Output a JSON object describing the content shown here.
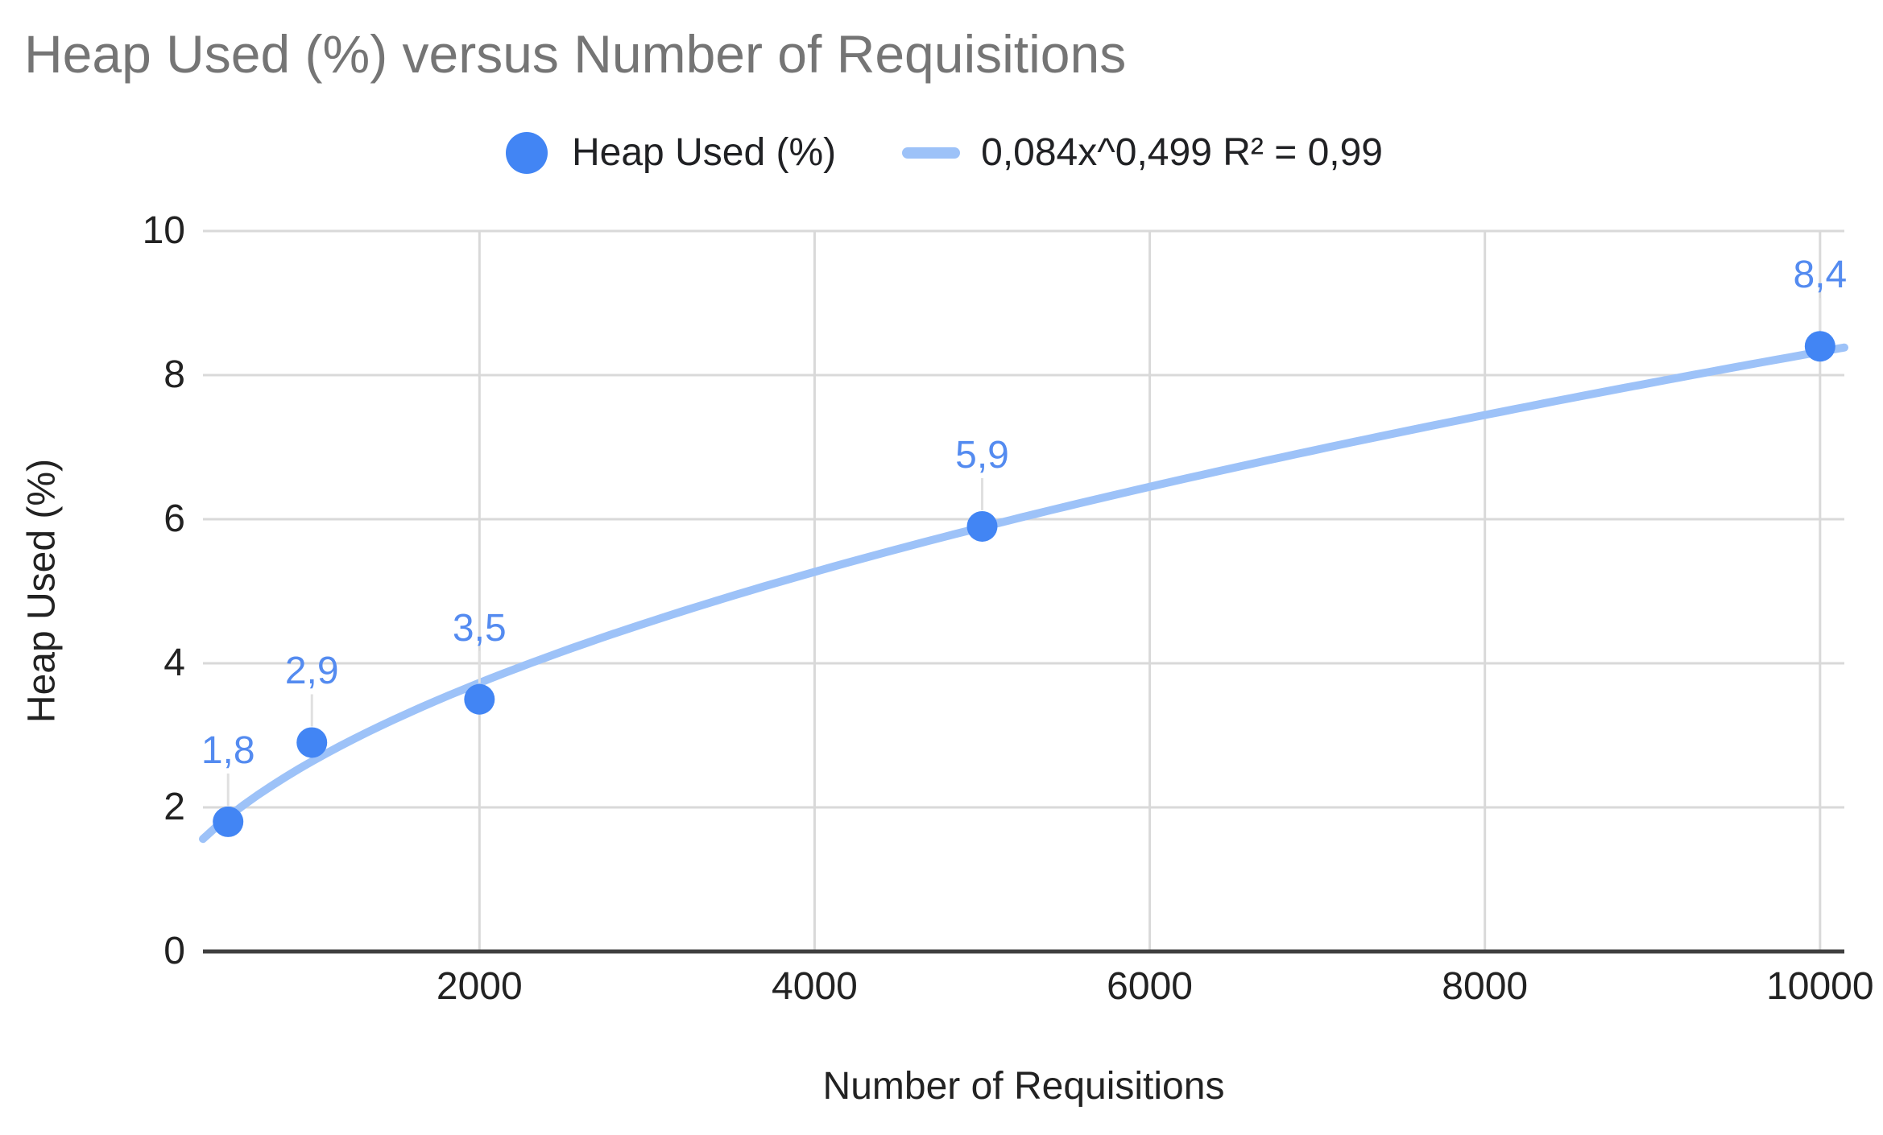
{
  "title": "Heap Used (%) versus Number of Requisitions",
  "legend": {
    "series_label": "Heap Used (%)",
    "trend_label": "0,084x^0,499 R² = 0,99"
  },
  "chart_data": {
    "type": "scatter",
    "title": "Heap Used (%) versus Number of Requisitions",
    "xlabel": "Number of Requisitions",
    "ylabel": "Heap Used (%)",
    "x": [
      500,
      1000,
      2000,
      5000,
      10000
    ],
    "y": [
      1.8,
      2.9,
      3.5,
      5.9,
      8.4
    ],
    "point_labels": [
      "1,8",
      "2,9",
      "3,5",
      "5,9",
      "8,4"
    ],
    "trendline": {
      "kind": "power",
      "equation": "0,084x^0,499",
      "r_squared": "0,99",
      "a": 0.084,
      "b": 0.499
    },
    "x_ticks": [
      2000,
      4000,
      6000,
      8000,
      10000
    ],
    "x_tick_labels": [
      "2000",
      "4000",
      "6000",
      "8000",
      "10000"
    ],
    "y_ticks": [
      0,
      2,
      4,
      6,
      8,
      10
    ],
    "y_tick_labels": [
      "0",
      "2",
      "4",
      "6",
      "8",
      "10"
    ],
    "xlim": [
      350,
      10145
    ],
    "ylim": [
      0,
      10
    ],
    "grid": true,
    "legend_position": "top",
    "colors": {
      "series": "#4285f4",
      "trendline": "#9dc2f8",
      "data_label": "#548bf0",
      "grid": "#d9d9d9",
      "axis_line": "#3f3f3f",
      "tick_text": "#222222",
      "axis_title_text": "#222222",
      "title": "#757575",
      "legend_text": "#202124",
      "leader": "#e0e0e0"
    }
  }
}
